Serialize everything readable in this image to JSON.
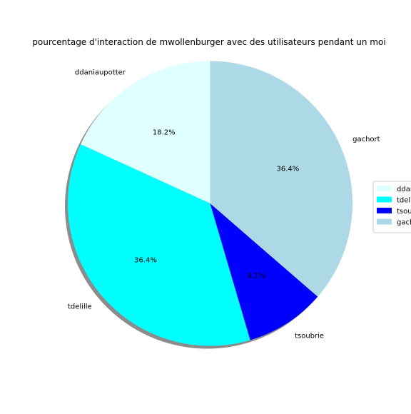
{
  "chart_data": {
    "type": "pie",
    "title": "pourcentage d'interaction de mwollenburger avec des utilisateurs pendant un moi",
    "categories": [
      "ddaniaupotter",
      "tdelille",
      "tsoubrie",
      "gachort"
    ],
    "values": [
      18.2,
      36.4,
      9.1,
      36.4
    ],
    "value_labels": [
      "18.2%",
      "36.4%",
      "9.1%",
      "36.4%"
    ],
    "colors": [
      "#e0ffff",
      "#00ffff",
      "#0000ff",
      "#add8e6"
    ],
    "legend_labels": [
      "ddaniaupotter",
      "tdelille",
      "tsoubrie",
      "gachort"
    ],
    "start_angle_deg": 90,
    "direction": "counterclockwise",
    "shadow": true,
    "legend_position": "right"
  }
}
